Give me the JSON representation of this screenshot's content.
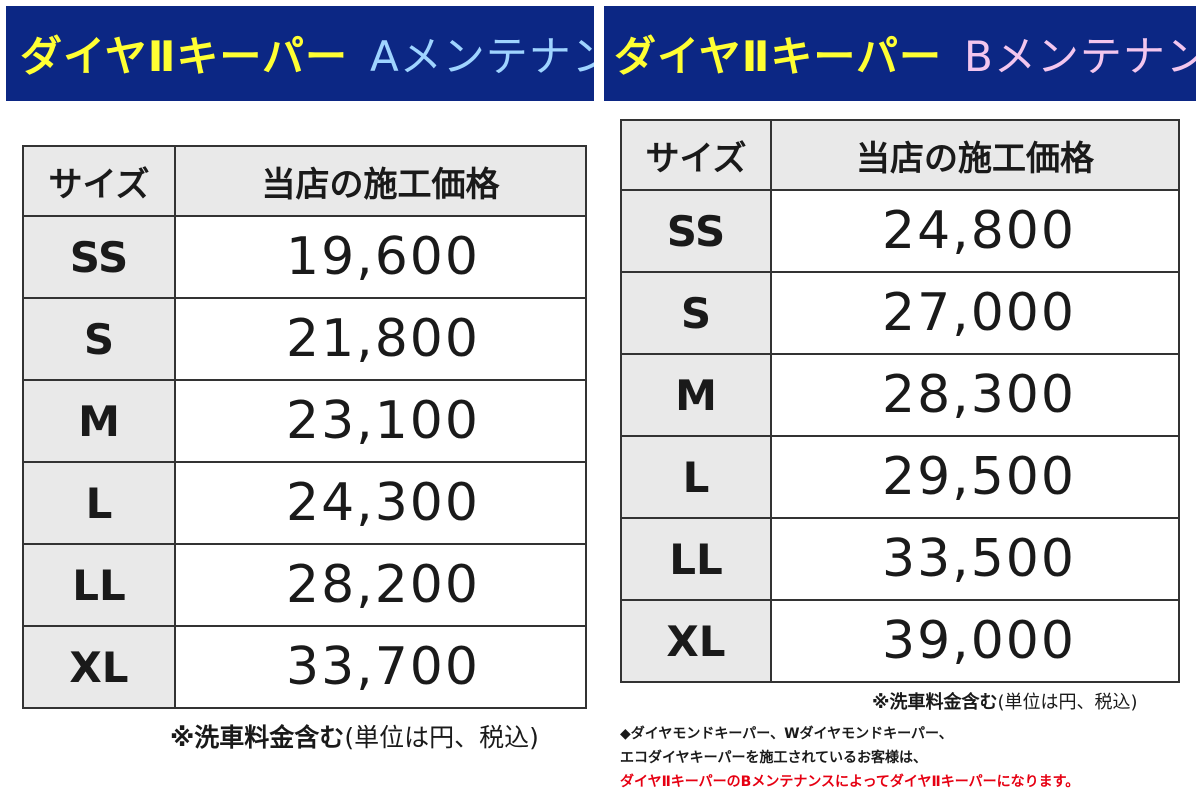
{
  "panel_a": {
    "title_main": "ダイヤⅡキーパー",
    "title_suffix": "Aメンテナンス",
    "suffix_color": "#9fd4ff",
    "header": {
      "size": "サイズ",
      "price": "当店の施工価格"
    },
    "rows": [
      {
        "size": "SS",
        "price": "19,600"
      },
      {
        "size": "S",
        "price": "21,800"
      },
      {
        "size": "M",
        "price": "23,100"
      },
      {
        "size": "L",
        "price": "24,300"
      },
      {
        "size": "LL",
        "price": "28,200"
      },
      {
        "size": "XL",
        "price": "33,700"
      }
    ],
    "note_bold": "※洗車料金含む",
    "note_normal": "(単位は円、税込)"
  },
  "panel_b": {
    "title_main": "ダイヤⅡキーパー",
    "title_suffix": "Bメンテナンス",
    "suffix_color": "#f3c6ee",
    "header": {
      "size": "サイズ",
      "price": "当店の施工価格"
    },
    "rows": [
      {
        "size": "SS",
        "price": "24,800"
      },
      {
        "size": "S",
        "price": "27,000"
      },
      {
        "size": "M",
        "price": "28,300"
      },
      {
        "size": "L",
        "price": "29,500"
      },
      {
        "size": "LL",
        "price": "33,500"
      },
      {
        "size": "XL",
        "price": "39,000"
      }
    ],
    "note_bold": "※洗車料金含む",
    "note_normal": "(単位は円、税込)"
  },
  "info": {
    "line1": "◆ダイヤモンドキーパー、Wダイヤモンドキーパー、",
    "line2": "エコダイヤキーパーを施工されているお客様は、",
    "line3": "ダイヤⅡキーパーのBメンテナンスによってダイヤⅡキーパーになります。"
  },
  "colors": {
    "banner_bg": "#0c2784",
    "banner_text": "#ffff33",
    "header_bg": "#e9e9e9",
    "notice_red": "#e60012"
  }
}
